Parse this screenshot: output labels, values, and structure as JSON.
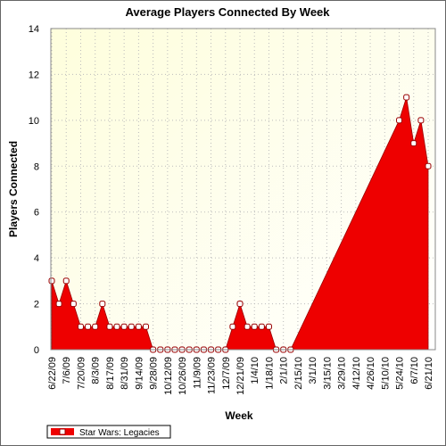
{
  "chart_data": {
    "type": "area",
    "title": "Average Players Connected By Week",
    "x_label": "Week",
    "y_label": "Players Connected",
    "categories": [
      "6/22/09",
      null,
      "7/6/09",
      null,
      "7/20/09",
      null,
      "8/3/09",
      null,
      "8/17/09",
      null,
      "8/31/09",
      null,
      "9/14/09",
      null,
      "9/28/09",
      null,
      "10/12/09",
      null,
      "10/26/09",
      null,
      "11/9/09",
      null,
      "11/23/09",
      null,
      "12/7/09",
      null,
      "12/21/09",
      null,
      "1/4/10",
      null,
      "1/18/10",
      null,
      "2/1/10",
      null,
      "2/15/10",
      null,
      "3/1/10",
      null,
      "3/15/10",
      null,
      "3/29/10",
      null,
      "4/12/10",
      null,
      "4/26/10",
      null,
      "5/10/10",
      null,
      "5/24/10",
      null,
      "6/7/10",
      null,
      "6/21/10"
    ],
    "series": [
      {
        "name": "Star Wars: Legacies",
        "color": "#ee0000",
        "values": [
          3,
          2,
          3,
          2,
          1,
          1,
          1,
          2,
          1,
          1,
          1,
          1,
          1,
          1,
          0,
          0,
          0,
          0,
          0,
          0,
          0,
          0,
          0,
          0,
          0,
          1,
          2,
          1,
          1,
          1,
          1,
          0,
          0,
          0,
          null,
          null,
          null,
          null,
          null,
          null,
          null,
          null,
          null,
          null,
          null,
          null,
          null,
          null,
          10,
          11,
          9,
          10,
          8
        ]
      }
    ],
    "connect_nulls": true,
    "ylim": [
      0,
      14
    ],
    "yticks": [
      0,
      2,
      4,
      6,
      8,
      10,
      12,
      14
    ],
    "grid": true,
    "legend": "bottom-left"
  }
}
